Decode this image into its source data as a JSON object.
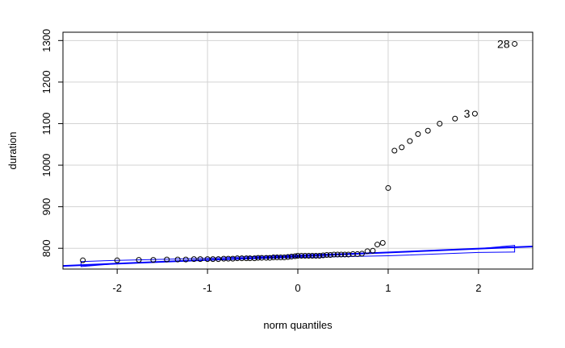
{
  "chart_data": {
    "type": "scatter",
    "title": "",
    "xlabel": "norm quantiles",
    "ylabel": "duration",
    "xlim": [
      -2.6,
      2.6
    ],
    "ylim": [
      750,
      1320
    ],
    "xticks": [
      -2,
      -1,
      0,
      1,
      2
    ],
    "yticks": [
      800,
      900,
      1000,
      1100,
      1200,
      1300
    ],
    "grid": true,
    "colors": {
      "points": "#000000",
      "reference_line": "#0000ff",
      "grid": "#d3d3d3"
    },
    "reference_line": {
      "slope": 9,
      "intercept": 781
    },
    "envelope": {
      "x": [
        -2.4,
        -2,
        -1,
        0,
        1,
        2,
        2.4
      ],
      "lower": [
        756,
        763,
        772,
        778,
        782,
        790,
        791
      ],
      "upper": [
        768,
        771,
        776,
        784,
        790,
        799,
        807
      ]
    },
    "points": [
      {
        "x": -2.38,
        "y": 771
      },
      {
        "x": -2.0,
        "y": 771
      },
      {
        "x": -1.76,
        "y": 772
      },
      {
        "x": -1.6,
        "y": 772
      },
      {
        "x": -1.45,
        "y": 773
      },
      {
        "x": -1.33,
        "y": 773
      },
      {
        "x": -1.24,
        "y": 773
      },
      {
        "x": -1.15,
        "y": 774
      },
      {
        "x": -1.08,
        "y": 774
      },
      {
        "x": -1.0,
        "y": 774
      },
      {
        "x": -0.94,
        "y": 774
      },
      {
        "x": -0.88,
        "y": 774
      },
      {
        "x": -0.82,
        "y": 775
      },
      {
        "x": -0.77,
        "y": 775
      },
      {
        "x": -0.72,
        "y": 775
      },
      {
        "x": -0.67,
        "y": 776
      },
      {
        "x": -0.62,
        "y": 776
      },
      {
        "x": -0.57,
        "y": 776
      },
      {
        "x": -0.53,
        "y": 776
      },
      {
        "x": -0.48,
        "y": 776
      },
      {
        "x": -0.44,
        "y": 777
      },
      {
        "x": -0.4,
        "y": 777
      },
      {
        "x": -0.35,
        "y": 777
      },
      {
        "x": -0.31,
        "y": 777
      },
      {
        "x": -0.27,
        "y": 778
      },
      {
        "x": -0.23,
        "y": 778
      },
      {
        "x": -0.19,
        "y": 778
      },
      {
        "x": -0.15,
        "y": 778
      },
      {
        "x": -0.11,
        "y": 779
      },
      {
        "x": -0.07,
        "y": 780
      },
      {
        "x": -0.03,
        "y": 781
      },
      {
        "x": 0.0,
        "y": 782
      },
      {
        "x": 0.04,
        "y": 782
      },
      {
        "x": 0.08,
        "y": 782
      },
      {
        "x": 0.12,
        "y": 782
      },
      {
        "x": 0.16,
        "y": 782
      },
      {
        "x": 0.2,
        "y": 782
      },
      {
        "x": 0.24,
        "y": 782
      },
      {
        "x": 0.28,
        "y": 783
      },
      {
        "x": 0.32,
        "y": 784
      },
      {
        "x": 0.36,
        "y": 784
      },
      {
        "x": 0.4,
        "y": 785
      },
      {
        "x": 0.44,
        "y": 785
      },
      {
        "x": 0.48,
        "y": 785
      },
      {
        "x": 0.52,
        "y": 785
      },
      {
        "x": 0.56,
        "y": 785
      },
      {
        "x": 0.61,
        "y": 786
      },
      {
        "x": 0.66,
        "y": 786
      },
      {
        "x": 0.71,
        "y": 787
      },
      {
        "x": 0.77,
        "y": 793
      },
      {
        "x": 0.83,
        "y": 794
      },
      {
        "x": 0.88,
        "y": 809
      },
      {
        "x": 0.94,
        "y": 813
      },
      {
        "x": 1.0,
        "y": 945
      },
      {
        "x": 1.07,
        "y": 1035
      },
      {
        "x": 1.15,
        "y": 1043
      },
      {
        "x": 1.24,
        "y": 1058
      },
      {
        "x": 1.33,
        "y": 1075
      },
      {
        "x": 1.44,
        "y": 1083
      },
      {
        "x": 1.57,
        "y": 1100
      },
      {
        "x": 1.74,
        "y": 1112
      },
      {
        "x": 1.96,
        "y": 1124
      },
      {
        "x": 2.4,
        "y": 1292
      }
    ],
    "annotations": [
      {
        "text": "28",
        "x": 2.4,
        "y": 1292
      },
      {
        "text": "3",
        "x": 1.96,
        "y": 1124
      }
    ]
  }
}
